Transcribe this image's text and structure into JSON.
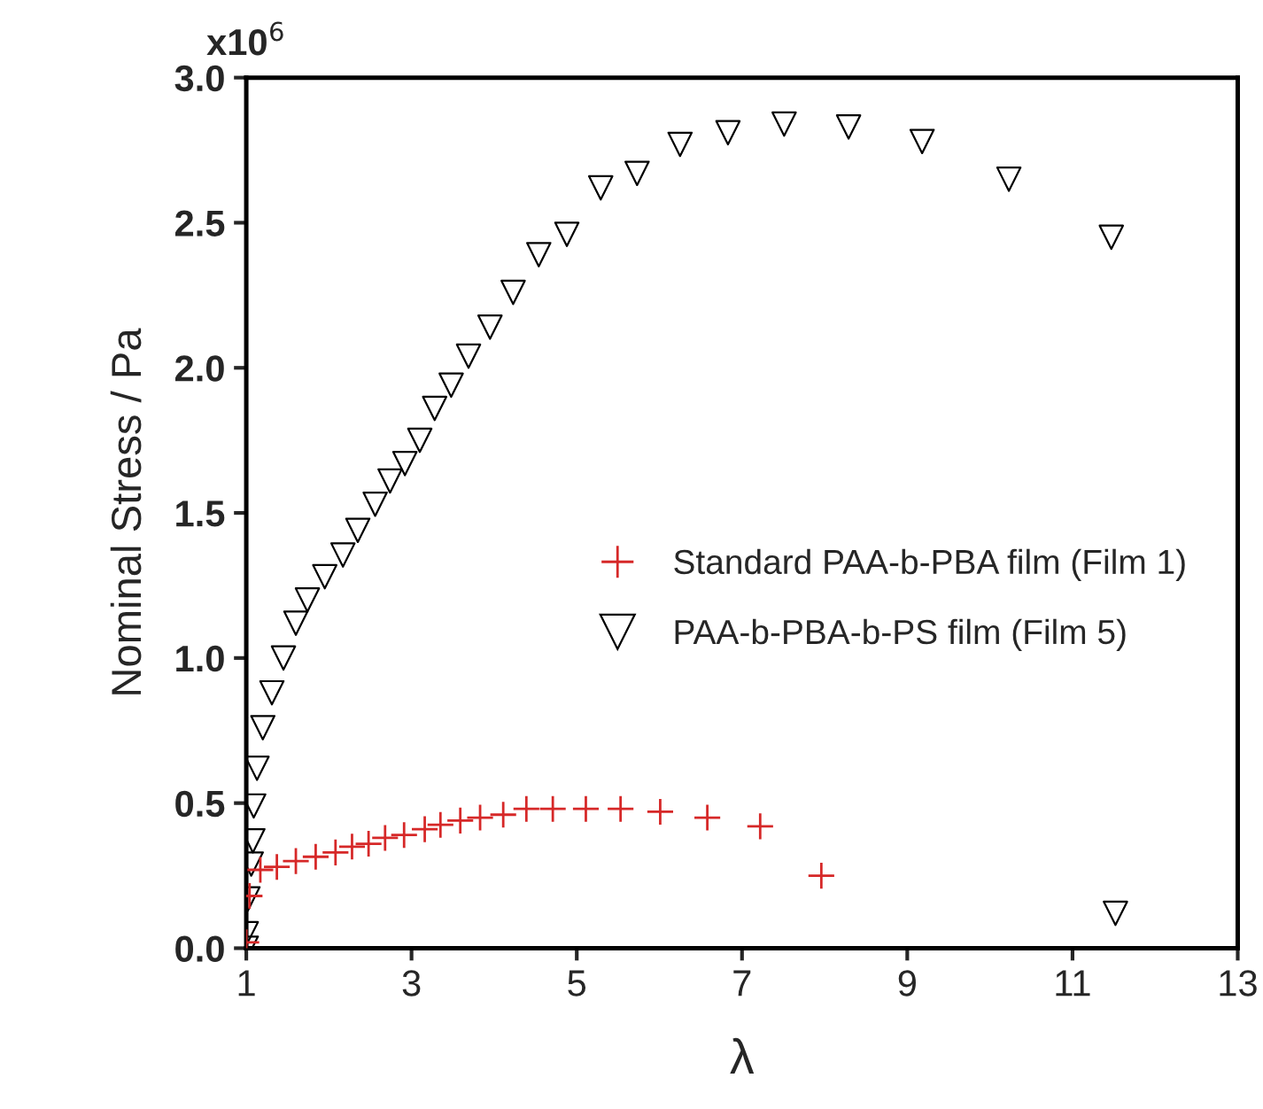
{
  "chart_data": {
    "type": "scatter",
    "xlabel": "λ",
    "ylabel": "Nominal Stress / Pa",
    "annotations": [
      "x10$^{6}$"
    ],
    "xlim": [
      1,
      13
    ],
    "xticks": [
      1,
      3,
      5,
      7,
      9,
      11,
      13
    ],
    "ylim": [
      0,
      3.0
    ],
    "yticks": [
      {
        "value": 0,
        "label": "0.0"
      },
      {
        "value": 0.5,
        "label": "0.5"
      },
      {
        "value": 1.0,
        "label": "1.0"
      },
      {
        "value": 1.5,
        "label": "1.5"
      },
      {
        "value": 2.0,
        "label": "2.0"
      },
      {
        "value": 2.5,
        "label": "2.5"
      },
      {
        "value": 3.0,
        "label": "3.0"
      }
    ],
    "grid": false,
    "legend": "center right",
    "series": [
      {
        "name": "Standard PAA-b-PBA film (Film 1)",
        "color": "#d62828",
        "marker": "cross",
        "x": [
          1.0,
          1.04,
          1.17,
          1.37,
          1.6,
          1.84,
          2.08,
          2.28,
          2.48,
          2.68,
          2.91,
          3.16,
          3.35,
          3.59,
          3.83,
          4.11,
          4.39,
          4.71,
          5.11,
          5.53,
          6.01,
          6.58,
          7.22,
          7.96
        ],
        "values": [
          0.02,
          0.18,
          0.27,
          0.28,
          0.3,
          0.315,
          0.33,
          0.35,
          0.36,
          0.38,
          0.39,
          0.41,
          0.425,
          0.44,
          0.45,
          0.46,
          0.48,
          0.48,
          0.48,
          0.48,
          0.47,
          0.45,
          0.42,
          0.25
        ]
      },
      {
        "name": "PAA-b-PBA-b-PS film (Film 5)",
        "color": "#000000",
        "marker": "triangle",
        "x": [
          1.0,
          1.0,
          1.02,
          1.06,
          1.08,
          1.09,
          1.13,
          1.2,
          1.31,
          1.45,
          1.6,
          1.74,
          1.95,
          2.17,
          2.35,
          2.56,
          2.74,
          2.92,
          3.1,
          3.28,
          3.48,
          3.69,
          3.95,
          4.23,
          4.54,
          4.88,
          5.29,
          5.73,
          6.25,
          6.83,
          7.51,
          8.29,
          9.18,
          10.23,
          11.47,
          11.52
        ],
        "values": [
          0.0,
          0.05,
          0.17,
          0.29,
          0.37,
          0.49,
          0.62,
          0.76,
          0.88,
          1.0,
          1.12,
          1.2,
          1.28,
          1.355,
          1.44,
          1.53,
          1.61,
          1.67,
          1.75,
          1.86,
          1.94,
          2.04,
          2.14,
          2.26,
          2.39,
          2.46,
          2.62,
          2.67,
          2.77,
          2.81,
          2.84,
          2.83,
          2.78,
          2.65,
          2.45,
          0.12
        ]
      }
    ]
  }
}
